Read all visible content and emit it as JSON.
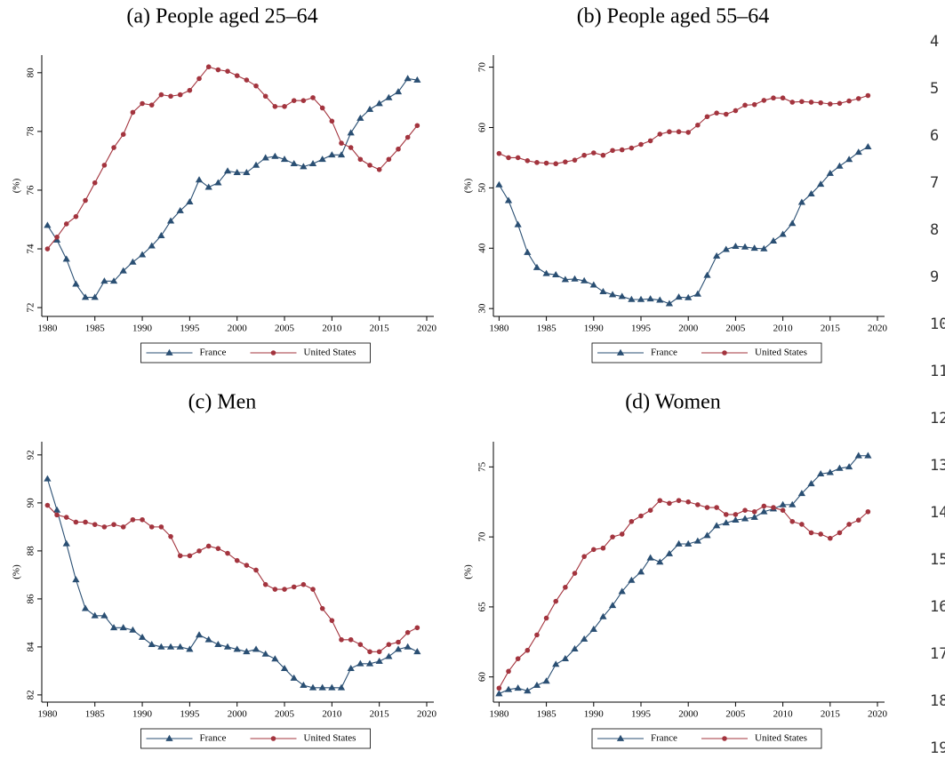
{
  "chart_data": [
    {
      "type": "line",
      "title": "(a) People aged 25–64",
      "ylabel": "(%)",
      "x": [
        1980,
        1981,
        1982,
        1983,
        1984,
        1985,
        1986,
        1987,
        1988,
        1989,
        1990,
        1991,
        1992,
        1993,
        1994,
        1995,
        1996,
        1997,
        1998,
        1999,
        2000,
        2001,
        2002,
        2003,
        2004,
        2005,
        2006,
        2007,
        2008,
        2009,
        2010,
        2011,
        2012,
        2013,
        2014,
        2015,
        2016,
        2017,
        2018,
        2019
      ],
      "xlim": [
        1979.4,
        2020.75
      ],
      "xticks": [
        1980,
        1985,
        1990,
        1995,
        2000,
        2005,
        2010,
        2015,
        2020
      ],
      "ylim": [
        71.7,
        80.6
      ],
      "yticks": [
        72,
        74,
        76,
        78,
        80
      ],
      "legend": "bottom",
      "series": [
        {
          "name": "France",
          "color": "#2a4f73",
          "marker": "triangle",
          "values": [
            74.8,
            74.3,
            73.65,
            72.8,
            72.35,
            72.35,
            72.9,
            72.9,
            73.25,
            73.55,
            73.8,
            74.1,
            74.45,
            74.95,
            75.3,
            75.6,
            76.35,
            76.1,
            76.25,
            76.65,
            76.6,
            76.6,
            76.85,
            77.1,
            77.15,
            77.05,
            76.9,
            76.8,
            76.9,
            77.05,
            77.2,
            77.2,
            77.95,
            78.45,
            78.75,
            78.95,
            79.15,
            79.35,
            79.8,
            79.75
          ]
        },
        {
          "name": "United States",
          "color": "#a3343e",
          "marker": "circle",
          "values": [
            74.0,
            74.4,
            74.85,
            75.1,
            75.65,
            76.25,
            76.85,
            77.45,
            77.9,
            78.65,
            78.95,
            78.9,
            79.25,
            79.2,
            79.25,
            79.4,
            79.8,
            80.2,
            80.1,
            80.05,
            79.9,
            79.75,
            79.55,
            79.2,
            78.85,
            78.85,
            79.05,
            79.05,
            79.15,
            78.8,
            78.35,
            77.6,
            77.45,
            77.05,
            76.85,
            76.7,
            77.05,
            77.4,
            77.8,
            78.2
          ]
        }
      ]
    },
    {
      "type": "line",
      "title": "(b) People aged 55–64",
      "ylabel": "(%)",
      "x": [
        1980,
        1981,
        1982,
        1983,
        1984,
        1985,
        1986,
        1987,
        1988,
        1989,
        1990,
        1991,
        1992,
        1993,
        1994,
        1995,
        1996,
        1997,
        1998,
        1999,
        2000,
        2001,
        2002,
        2003,
        2004,
        2005,
        2006,
        2007,
        2008,
        2009,
        2010,
        2011,
        2012,
        2013,
        2014,
        2015,
        2016,
        2017,
        2018,
        2019
      ],
      "xlim": [
        1979.4,
        2020.75
      ],
      "xticks": [
        1980,
        1985,
        1990,
        1995,
        2000,
        2005,
        2010,
        2015,
        2020
      ],
      "ylim": [
        28.7,
        72
      ],
      "yticks": [
        30,
        40,
        50,
        60,
        70
      ],
      "legend": "bottom",
      "series": [
        {
          "name": "France",
          "color": "#2a4f73",
          "marker": "triangle",
          "values": [
            50.5,
            47.9,
            43.9,
            39.3,
            36.8,
            35.8,
            35.6,
            34.8,
            34.9,
            34.6,
            33.9,
            32.8,
            32.3,
            32.0,
            31.5,
            31.5,
            31.6,
            31.4,
            30.8,
            31.9,
            31.8,
            32.4,
            35.5,
            38.7,
            39.8,
            40.3,
            40.2,
            40.0,
            39.9,
            41.2,
            42.3,
            44.1,
            47.6,
            49.0,
            50.6,
            52.4,
            53.6,
            54.7,
            55.9,
            56.8
          ]
        },
        {
          "name": "United States",
          "color": "#a3343e",
          "marker": "circle",
          "values": [
            55.7,
            55.0,
            55.0,
            54.5,
            54.2,
            54.1,
            54.0,
            54.3,
            54.6,
            55.4,
            55.8,
            55.4,
            56.2,
            56.3,
            56.6,
            57.2,
            57.8,
            58.9,
            59.3,
            59.3,
            59.2,
            60.4,
            61.8,
            62.4,
            62.2,
            62.8,
            63.7,
            63.8,
            64.5,
            64.9,
            64.9,
            64.2,
            64.3,
            64.2,
            64.1,
            63.9,
            64.0,
            64.4,
            64.8,
            65.3
          ]
        }
      ]
    },
    {
      "type": "line",
      "title": "(c) Men",
      "ylabel": "(%)",
      "x": [
        1980,
        1981,
        1982,
        1983,
        1984,
        1985,
        1986,
        1987,
        1988,
        1989,
        1990,
        1991,
        1992,
        1993,
        1994,
        1995,
        1996,
        1997,
        1998,
        1999,
        2000,
        2001,
        2002,
        2003,
        2004,
        2005,
        2006,
        2007,
        2008,
        2009,
        2010,
        2011,
        2012,
        2013,
        2014,
        2015,
        2016,
        2017,
        2018,
        2019
      ],
      "xlim": [
        1979.4,
        2020.75
      ],
      "xticks": [
        1980,
        1985,
        1990,
        1995,
        2000,
        2005,
        2010,
        2015,
        2020
      ],
      "ylim": [
        81.7,
        92.55
      ],
      "yticks": [
        82,
        84,
        86,
        88,
        90,
        92
      ],
      "legend": "bottom",
      "series": [
        {
          "name": "France",
          "color": "#2a4f73",
          "marker": "triangle",
          "values": [
            91.0,
            89.7,
            88.3,
            86.8,
            85.6,
            85.3,
            85.3,
            84.8,
            84.8,
            84.7,
            84.4,
            84.1,
            84.0,
            84.0,
            84.0,
            83.9,
            84.5,
            84.3,
            84.1,
            84.0,
            83.9,
            83.8,
            83.9,
            83.7,
            83.5,
            83.1,
            82.7,
            82.4,
            82.3,
            82.3,
            82.3,
            82.3,
            83.1,
            83.3,
            83.3,
            83.4,
            83.6,
            83.9,
            84.0,
            83.8
          ]
        },
        {
          "name": "United States",
          "color": "#a3343e",
          "marker": "circle",
          "values": [
            89.9,
            89.5,
            89.4,
            89.2,
            89.2,
            89.1,
            89.0,
            89.1,
            89.0,
            89.3,
            89.3,
            89.0,
            89.0,
            88.6,
            87.8,
            87.8,
            88.0,
            88.2,
            88.1,
            87.9,
            87.6,
            87.4,
            87.2,
            86.6,
            86.4,
            86.4,
            86.5,
            86.6,
            86.4,
            85.6,
            85.1,
            84.3,
            84.3,
            84.1,
            83.8,
            83.8,
            84.1,
            84.2,
            84.6,
            84.8
          ]
        }
      ]
    },
    {
      "type": "line",
      "title": "(d) Women",
      "ylabel": "(%)",
      "x": [
        1980,
        1981,
        1982,
        1983,
        1984,
        1985,
        1986,
        1987,
        1988,
        1989,
        1990,
        1991,
        1992,
        1993,
        1994,
        1995,
        1996,
        1997,
        1998,
        1999,
        2000,
        2001,
        2002,
        2003,
        2004,
        2005,
        2006,
        2007,
        2008,
        2009,
        2010,
        2011,
        2012,
        2013,
        2014,
        2015,
        2016,
        2017,
        2018,
        2019
      ],
      "xlim": [
        1979.4,
        2020.75
      ],
      "xticks": [
        1980,
        1985,
        1990,
        1995,
        2000,
        2005,
        2010,
        2015,
        2020
      ],
      "ylim": [
        58.2,
        76.8
      ],
      "yticks": [
        60,
        65,
        70,
        75
      ],
      "legend": "bottom",
      "series": [
        {
          "name": "France",
          "color": "#2a4f73",
          "marker": "triangle",
          "values": [
            58.8,
            59.1,
            59.2,
            59.0,
            59.4,
            59.7,
            60.9,
            61.3,
            62.0,
            62.7,
            63.4,
            64.3,
            65.1,
            66.1,
            66.9,
            67.5,
            68.5,
            68.2,
            68.8,
            69.5,
            69.5,
            69.7,
            70.1,
            70.8,
            71.0,
            71.2,
            71.3,
            71.4,
            71.8,
            72.0,
            72.3,
            72.3,
            73.1,
            73.8,
            74.5,
            74.6,
            74.9,
            75.0,
            75.8,
            75.8
          ]
        },
        {
          "name": "United States",
          "color": "#a3343e",
          "marker": "circle",
          "values": [
            59.2,
            60.4,
            61.3,
            61.9,
            63.0,
            64.2,
            65.4,
            66.4,
            67.4,
            68.6,
            69.1,
            69.2,
            70.0,
            70.2,
            71.1,
            71.5,
            71.9,
            72.6,
            72.4,
            72.6,
            72.5,
            72.3,
            72.1,
            72.1,
            71.6,
            71.6,
            71.9,
            71.8,
            72.2,
            72.1,
            71.9,
            71.1,
            70.9,
            70.3,
            70.2,
            69.9,
            70.3,
            70.9,
            71.2,
            71.8
          ]
        }
      ]
    }
  ],
  "line_numbers": [
    4,
    5,
    6,
    7,
    8,
    9,
    10,
    11,
    12,
    13,
    14,
    15,
    16,
    17,
    18,
    19
  ]
}
